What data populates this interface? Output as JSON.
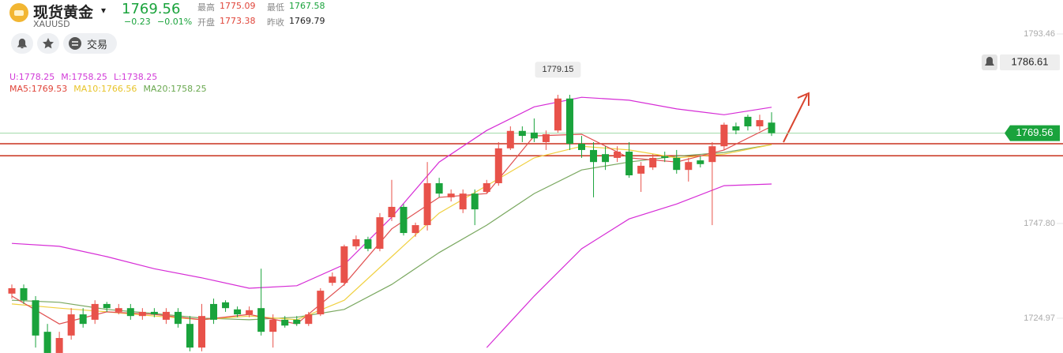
{
  "header": {
    "title": "现货黄金",
    "symbol": "XAUUSD",
    "price": "1769.56",
    "change": "−0.23",
    "change_pct": "−0.01%",
    "stats": [
      {
        "label": "最高",
        "value": "1775.09",
        "color": "#e0453a"
      },
      {
        "label": "开盘",
        "value": "1773.38",
        "color": "#e0453a"
      },
      {
        "label": "最低",
        "value": "1767.58",
        "color": "#1aa33c"
      },
      {
        "label": "昨收",
        "value": "1769.79",
        "color": "#222222"
      }
    ],
    "trade_button": "交易"
  },
  "chart_data": {
    "type": "candlestick",
    "indicators": {
      "boll": [
        "U:1778.25",
        "M:1758.25",
        "L:1738.25"
      ],
      "boll_color": "#d23bd8",
      "ma": [
        "MA5:1769.53",
        "MA10:1766.56",
        "MA20:1758.25"
      ],
      "ma_colors": [
        "#e0453a",
        "#e8c42a",
        "#6aa84f"
      ]
    },
    "categories": [
      null,
      null,
      null,
      null,
      null,
      null,
      null,
      null,
      null,
      null,
      null,
      null,
      null,
      null,
      null,
      null,
      null,
      null,
      null,
      null,
      null,
      null,
      null,
      null,
      null,
      null,
      null,
      null,
      null,
      null,
      null,
      null,
      null,
      null,
      null,
      null,
      null,
      null,
      null,
      null,
      null,
      null,
      null,
      null,
      null,
      null,
      null,
      null,
      null,
      null,
      null,
      null,
      null,
      null,
      null,
      null,
      null,
      null,
      null,
      null,
      null,
      null,
      null,
      null,
      null
    ],
    "open": [
      1730.9,
      1732.2,
      1729.3,
      1721.7,
      1716.6,
      1720.8,
      1725.9,
      1724.6,
      1728.4,
      1726.5,
      1727.4,
      1725.5,
      1726.5,
      1724.6,
      1726.5,
      1723.6,
      1717.9,
      1728.4,
      1728.8,
      1727.1,
      1725.9,
      1727.4,
      1721.7,
      1724.6,
      1724.6,
      1723.6,
      1725.9,
      1733.5,
      1733.5,
      1742.3,
      1744.0,
      1741.7,
      1749.3,
      1751.8,
      1745.5,
      1747.4,
      1757.5,
      1754.1,
      1751.2,
      1755.0,
      1755.4,
      1757.5,
      1765.9,
      1770.1,
      1769.7,
      1767.4,
      1770.2,
      1777.9,
      1767.0,
      1765.5,
      1764.5,
      1763.6,
      1765.1,
      1759.8,
      1761.3,
      1764.0,
      1763.6,
      1760.7,
      1763.0,
      1762.6,
      1766.4,
      1771.2,
      1773.5,
      1771.2,
      1772.1
    ],
    "high": [
      1733.1,
      1733.1,
      1730.3,
      1723.6,
      1721.7,
      1727.4,
      1727.4,
      1729.3,
      1728.9,
      1728.4,
      1728.4,
      1727.4,
      1727.4,
      1727.4,
      1727.4,
      1725.5,
      1728.4,
      1729.7,
      1729.3,
      1727.8,
      1727.8,
      1736.9,
      1725.9,
      1725.5,
      1725.5,
      1726.5,
      1732.2,
      1736.0,
      1742.7,
      1744.9,
      1744.6,
      1750.3,
      1758.3,
      1752.5,
      1748.0,
      1762.6,
      1758.8,
      1756.0,
      1756.0,
      1756.0,
      1758.3,
      1767.4,
      1771.2,
      1771.2,
      1773.1,
      1770.2,
      1778.8,
      1778.8,
      1768.9,
      1767.4,
      1766.4,
      1766.4,
      1767.4,
      1762.6,
      1764.5,
      1765.1,
      1765.5,
      1763.6,
      1764.0,
      1767.4,
      1772.1,
      1772.1,
      1774.0,
      1774.0,
      1774.6
    ],
    "low": [
      1729.7,
      1728.4,
      1717.9,
      1716.6,
      1716.6,
      1719.8,
      1722.7,
      1723.6,
      1726.5,
      1725.9,
      1724.6,
      1724.6,
      1725.2,
      1723.6,
      1722.7,
      1717.0,
      1717.0,
      1723.6,
      1726.5,
      1725.2,
      1725.2,
      1720.8,
      1717.9,
      1722.7,
      1723.1,
      1723.1,
      1725.5,
      1732.8,
      1732.8,
      1741.5,
      1741.1,
      1741.1,
      1748.4,
      1744.9,
      1744.6,
      1746.1,
      1754.1,
      1753.1,
      1750.3,
      1747.4,
      1755.0,
      1756.9,
      1765.5,
      1767.4,
      1767.4,
      1765.5,
      1769.7,
      1765.5,
      1763.6,
      1754.1,
      1760.7,
      1762.6,
      1758.8,
      1755.4,
      1760.7,
      1762.6,
      1759.8,
      1757.9,
      1761.3,
      1747.4,
      1765.5,
      1769.3,
      1770.2,
      1770.2,
      1768.9
    ],
    "close": [
      1732.2,
      1729.3,
      1720.8,
      1716.6,
      1720.2,
      1725.9,
      1723.6,
      1728.4,
      1727.4,
      1727.4,
      1725.5,
      1726.5,
      1725.9,
      1726.5,
      1723.6,
      1717.9,
      1725.5,
      1724.6,
      1727.4,
      1725.9,
      1726.9,
      1721.7,
      1724.6,
      1723.2,
      1723.6,
      1725.9,
      1731.6,
      1735.0,
      1742.3,
      1744.0,
      1741.7,
      1749.3,
      1751.8,
      1745.5,
      1747.4,
      1757.5,
      1755.0,
      1755.0,
      1755.0,
      1751.2,
      1757.5,
      1765.9,
      1770.1,
      1768.9,
      1768.3,
      1769.3,
      1777.9,
      1767.0,
      1765.5,
      1762.6,
      1762.6,
      1765.1,
      1759.4,
      1761.7,
      1763.6,
      1763.6,
      1760.7,
      1762.6,
      1762.1,
      1766.4,
      1771.6,
      1770.2,
      1771.2,
      1772.7,
      1769.56
    ],
    "up_color": "#e8524a",
    "down_color": "#1aa33c",
    "ylim": [
      1716.59,
      1801.64
    ],
    "yticks": [
      1793.46,
      {
        "value": 1747.8,
        "label": "1747.80"
      },
      1724.97
    ],
    "overlay": {
      "x": [
        0,
        4,
        8,
        12,
        16,
        20,
        24,
        28,
        32,
        36,
        40,
        44,
        48,
        52,
        56,
        60,
        64
      ],
      "series": [
        {
          "color": "#d62cd6",
          "values": [
            1743.0,
            1742.3,
            1739.8,
            1736.9,
            1734.7,
            1732.2,
            1732.8,
            1737.9,
            1749.3,
            1762.6,
            1770.2,
            1775.9,
            1778.2,
            1777.5,
            1775.4,
            1774.0,
            1775.8
          ]
        },
        {
          "color": "#d62cd6",
          "values": [
            null,
            null,
            null,
            null,
            null,
            null,
            null,
            null,
            null,
            null,
            1717.9,
            1730.3,
            1741.7,
            1748.9,
            1752.5,
            1756.9,
            1757.3
          ]
        },
        {
          "color": "#7aa860",
          "values": [
            1729.3,
            1728.8,
            1727.1,
            1726.1,
            1725.0,
            1724.6,
            1725.2,
            1727.1,
            1733.1,
            1740.8,
            1747.4,
            1755.0,
            1760.7,
            1762.6,
            1764.0,
            1764.9,
            1766.8
          ]
        },
        {
          "color": "#f0d040",
          "values": [
            1728.4,
            1727.4,
            1726.5,
            1725.5,
            1724.6,
            1725.5,
            1724.6,
            1729.3,
            1739.8,
            1750.3,
            1756.9,
            1763.6,
            1766.4,
            1765.5,
            1763.6,
            1764.5,
            1766.8
          ]
        },
        {
          "color": "#e05050",
          "values": [
            1730.3,
            1723.6,
            1726.5,
            1725.9,
            1724.6,
            1725.9,
            1723.6,
            1733.1,
            1746.5,
            1754.1,
            1755.0,
            1768.9,
            1769.3,
            1763.6,
            1762.6,
            1765.5,
            1771.2
          ]
        }
      ]
    },
    "levels": [
      {
        "value": 1767.0,
        "color": "#c8321e"
      },
      {
        "value": 1764.1,
        "color": "#c8321e"
      }
    ],
    "last_price": 1769.56,
    "last_price_color": "#1aa33c",
    "max_label": 1779.15,
    "max_index": 46,
    "alert": 1786.61
  }
}
